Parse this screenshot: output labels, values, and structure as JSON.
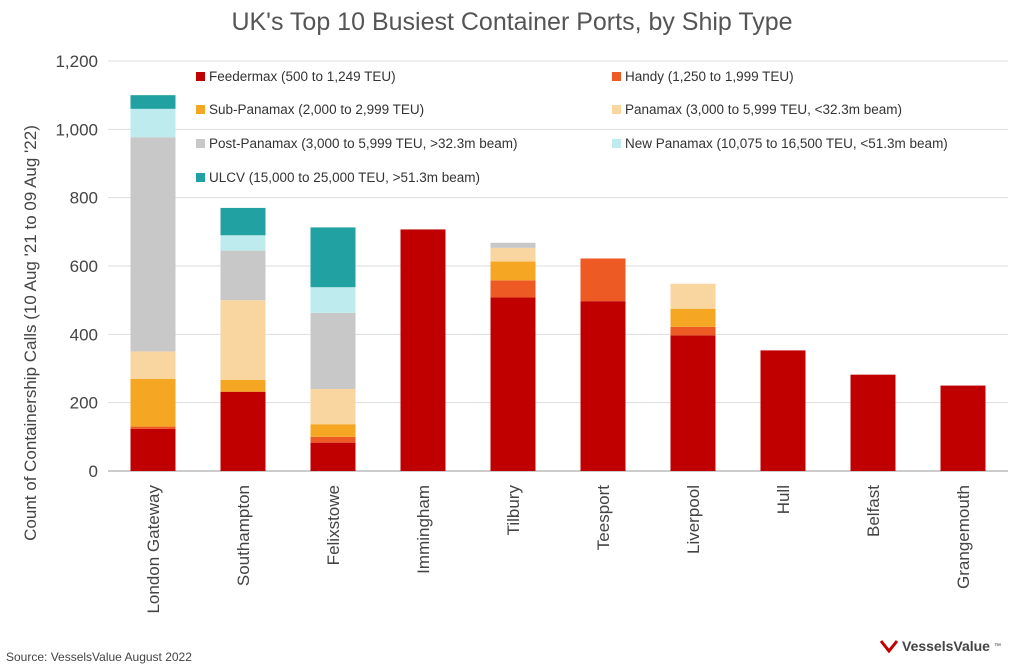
{
  "chart_data": {
    "type": "bar",
    "stacked": true,
    "title": "UK's Top 10 Busiest Container Ports, by Ship Type",
    "ylabel": "Count of Containership Calls (10 Aug '21 to 09 Aug '22)",
    "xlabel": "",
    "ylim": [
      0,
      1200
    ],
    "yticks": [
      "0",
      "200",
      "400",
      "600",
      "800",
      "1,000",
      "1,200"
    ],
    "ytick_values": [
      0,
      200,
      400,
      600,
      800,
      1000,
      1200
    ],
    "grid": true,
    "legend_position": "top-right",
    "categories": [
      "London Gateway",
      "Southampton",
      "Felixstowe",
      "Immingham",
      "Tilbury",
      "Teesport",
      "Liverpool",
      "Hull",
      "Belfast",
      "Grangemouth"
    ],
    "series": [
      {
        "name": "Feedermax (500 to 1,249 TEU)",
        "color": "#C00000",
        "values": [
          123,
          232,
          83,
          707,
          508,
          497,
          397,
          353,
          282,
          250
        ]
      },
      {
        "name": "Handy (1,250 to 1,999 TEU)",
        "color": "#EE5A24",
        "values": [
          7,
          0,
          17,
          0,
          50,
          125,
          25,
          0,
          0,
          0
        ]
      },
      {
        "name": "Sub-Panamax (2,000 to 2,999 TEU)",
        "color": "#F5A623",
        "values": [
          140,
          35,
          37,
          0,
          55,
          0,
          53,
          0,
          0,
          0
        ]
      },
      {
        "name": "Panamax (3,000 to 5,999 TEU, <32.3m beam)",
        "color": "#F9D5A0",
        "values": [
          80,
          233,
          103,
          0,
          40,
          0,
          73,
          0,
          0,
          0
        ]
      },
      {
        "name": "Post-Panamax (3,000 to 5,999 TEU, >32.3m beam)",
        "color": "#C8C8C8",
        "values": [
          627,
          145,
          223,
          0,
          15,
          0,
          0,
          0,
          0,
          0
        ]
      },
      {
        "name": "New Panamax (10,075 to 16,500 TEU, <51.3m beam)",
        "color": "#BEECEE",
        "values": [
          83,
          45,
          75,
          0,
          0,
          0,
          0,
          0,
          0,
          0
        ]
      },
      {
        "name": "ULCV (15,000 to 25,000 TEU, >51.3m beam)",
        "color": "#21A1A1",
        "values": [
          40,
          80,
          175,
          0,
          0,
          0,
          0,
          0,
          0,
          0
        ]
      }
    ],
    "source": "Source: VesselsValue August 2022"
  },
  "branding": {
    "logo_text": "VesselsValue",
    "logo_tm": "™",
    "logo_color": "#C00000"
  }
}
